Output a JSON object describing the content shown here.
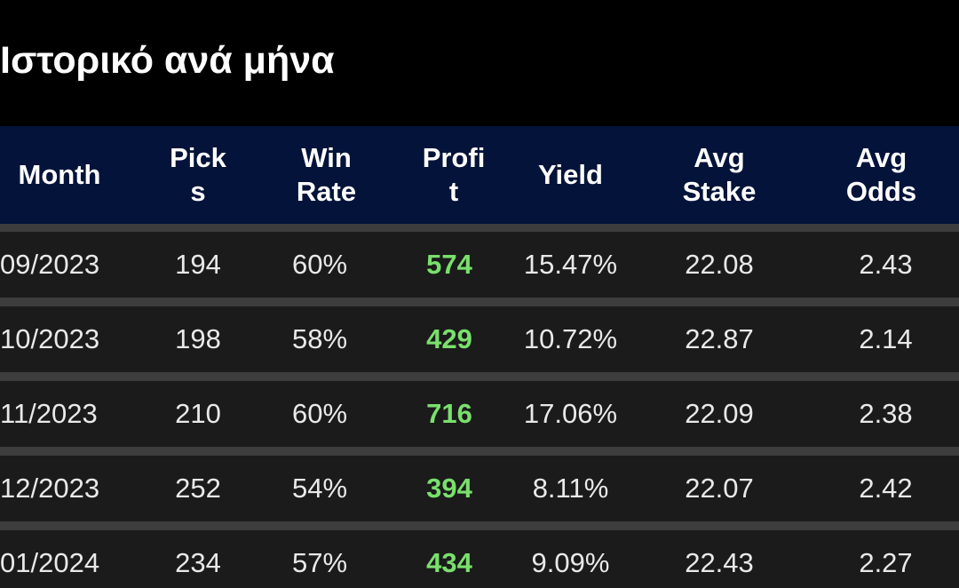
{
  "title": "Ιστορικό ανά μήνα",
  "colors": {
    "background": "#000000",
    "header_bg": "#031339",
    "row_bg": "#1b1b1b",
    "separator": "#3d3d3d",
    "text": "#e9e9e9",
    "profit_positive": "#79e06c"
  },
  "table": {
    "headers": {
      "month": "Month",
      "picks": "Pick\ns",
      "win_rate": "Win\nRate",
      "profit": "Profi\nt",
      "yield": "Yield",
      "avg_stake": "Avg\nStake",
      "avg_odds": "Avg\nOdds"
    },
    "rows": [
      {
        "month": "09/2023",
        "picks": "194",
        "win_rate": "60%",
        "profit": "574",
        "yield": "15.47%",
        "avg_stake": "22.08",
        "avg_odds": "2.43"
      },
      {
        "month": "10/2023",
        "picks": "198",
        "win_rate": "58%",
        "profit": "429",
        "yield": "10.72%",
        "avg_stake": "22.87",
        "avg_odds": "2.14"
      },
      {
        "month": "11/2023",
        "picks": "210",
        "win_rate": "60%",
        "profit": "716",
        "yield": "17.06%",
        "avg_stake": "22.09",
        "avg_odds": "2.38"
      },
      {
        "month": "12/2023",
        "picks": "252",
        "win_rate": "54%",
        "profit": "394",
        "yield": "8.11%",
        "avg_stake": "22.07",
        "avg_odds": "2.42"
      },
      {
        "month": "01/2024",
        "picks": "234",
        "win_rate": "57%",
        "profit": "434",
        "yield": "9.09%",
        "avg_stake": "22.43",
        "avg_odds": "2.27"
      }
    ]
  }
}
